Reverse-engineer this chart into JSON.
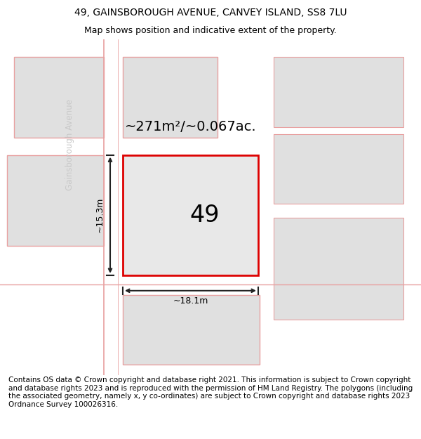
{
  "title": "49, GAINSBOROUGH AVENUE, CANVEY ISLAND, SS8 7LU",
  "subtitle": "Map shows position and indicative extent of the property.",
  "area_text": "~271m²/~0.067ac.",
  "number_label": "49",
  "width_label": "~18.1m",
  "height_label": "~15.3m",
  "street_label": "Gainsborough Avenue",
  "footer_text": "Contains OS data © Crown copyright and database right 2021. This information is subject to Crown copyright and database rights 2023 and is reproduced with the permission of HM Land Registry. The polygons (including the associated geometry, namely x, y co-ordinates) are subject to Crown copyright and database rights 2023 Ordnance Survey 100026316.",
  "map_bg": "#f2f2f2",
  "plot_fill": "#e8e8e8",
  "plot_edge": "#dd0000",
  "parcel_fill": "#e0e0e0",
  "parcel_edge": "#e8a0a0",
  "title_fontsize": 10,
  "subtitle_fontsize": 9,
  "footer_fontsize": 7.5,
  "street_color": "#c8c8c8",
  "road_line_color": "#e8a0a0",
  "dim_line_color": "#222222"
}
